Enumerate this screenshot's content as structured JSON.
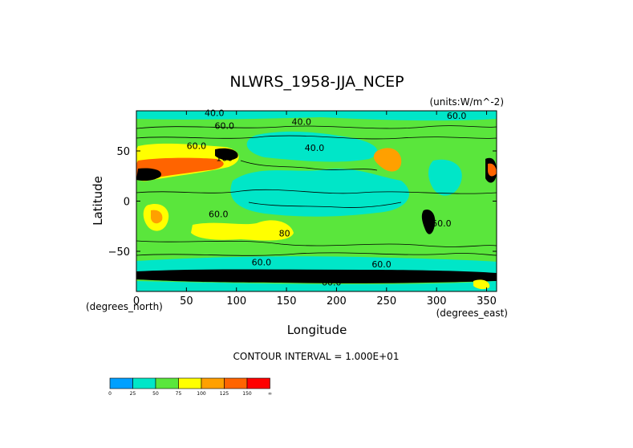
{
  "chart_data": {
    "type": "heatmap",
    "title": "NLWRS_1958-JJA_NCEP",
    "units_label": "(units:W/m^-2)",
    "xlabel": "Longitude",
    "ylabel": "Latitude",
    "x_unit_label": "(degrees_east)",
    "y_unit_label": "(degrees_north)",
    "xlim": [
      0,
      360
    ],
    "ylim": [
      -90,
      90
    ],
    "x_ticks": [
      0,
      50,
      100,
      150,
      200,
      250,
      300,
      350
    ],
    "y_ticks": [
      -50,
      0,
      50
    ],
    "contour_interval_text": "CONTOUR INTERVAL = 1.000E+01",
    "contour_labels": [
      {
        "text": "40.0",
        "lon": 78,
        "lat": 85
      },
      {
        "text": "60.0",
        "lon": 88,
        "lat": 72
      },
      {
        "text": "40.0",
        "lon": 165,
        "lat": 76
      },
      {
        "text": "40.0",
        "lon": 178,
        "lat": 50
      },
      {
        "text": "60.0",
        "lon": 60,
        "lat": 52
      },
      {
        "text": "100",
        "lon": 88,
        "lat": 40
      },
      {
        "text": "60.0",
        "lon": 82,
        "lat": -16
      },
      {
        "text": "80",
        "lon": 148,
        "lat": -35
      },
      {
        "text": "60.0",
        "lon": 305,
        "lat": -25
      },
      {
        "text": "60.0",
        "lon": 125,
        "lat": -64
      },
      {
        "text": "60.0",
        "lon": 245,
        "lat": -66
      },
      {
        "text": "60.0",
        "lon": 320,
        "lat": 82
      },
      {
        "text": "60.0",
        "lon": 195,
        "lat": -84
      }
    ],
    "colorbar": {
      "ticks": [
        "0",
        "25",
        "50",
        "75",
        "100",
        "125",
        "150",
        "∞"
      ],
      "colors": [
        "#00a0ff",
        "#00e6c8",
        "#5ae63c",
        "#ffff00",
        "#ffa000",
        "#ff6400",
        "#ff0000"
      ]
    },
    "regions": [
      {
        "band": "background",
        "value_range": [
          50,
          75
        ],
        "color": "#5ae63c"
      },
      {
        "band": "tropics_ocean",
        "value_range": [
          25,
          50
        ],
        "color": "#00e6c8"
      },
      {
        "band": "sahara_arabia",
        "value_range": [
          125,
          150
        ],
        "color": "#ff6400"
      },
      {
        "band": "southern_africa",
        "value_range": [
          75,
          100
        ],
        "color": "#ffff00"
      },
      {
        "band": "australia",
        "value_range": [
          75,
          100
        ],
        "color": "#ffff00"
      },
      {
        "band": "antarctic",
        "value_range": [
          0,
          25
        ],
        "color": "#000000"
      }
    ]
  }
}
